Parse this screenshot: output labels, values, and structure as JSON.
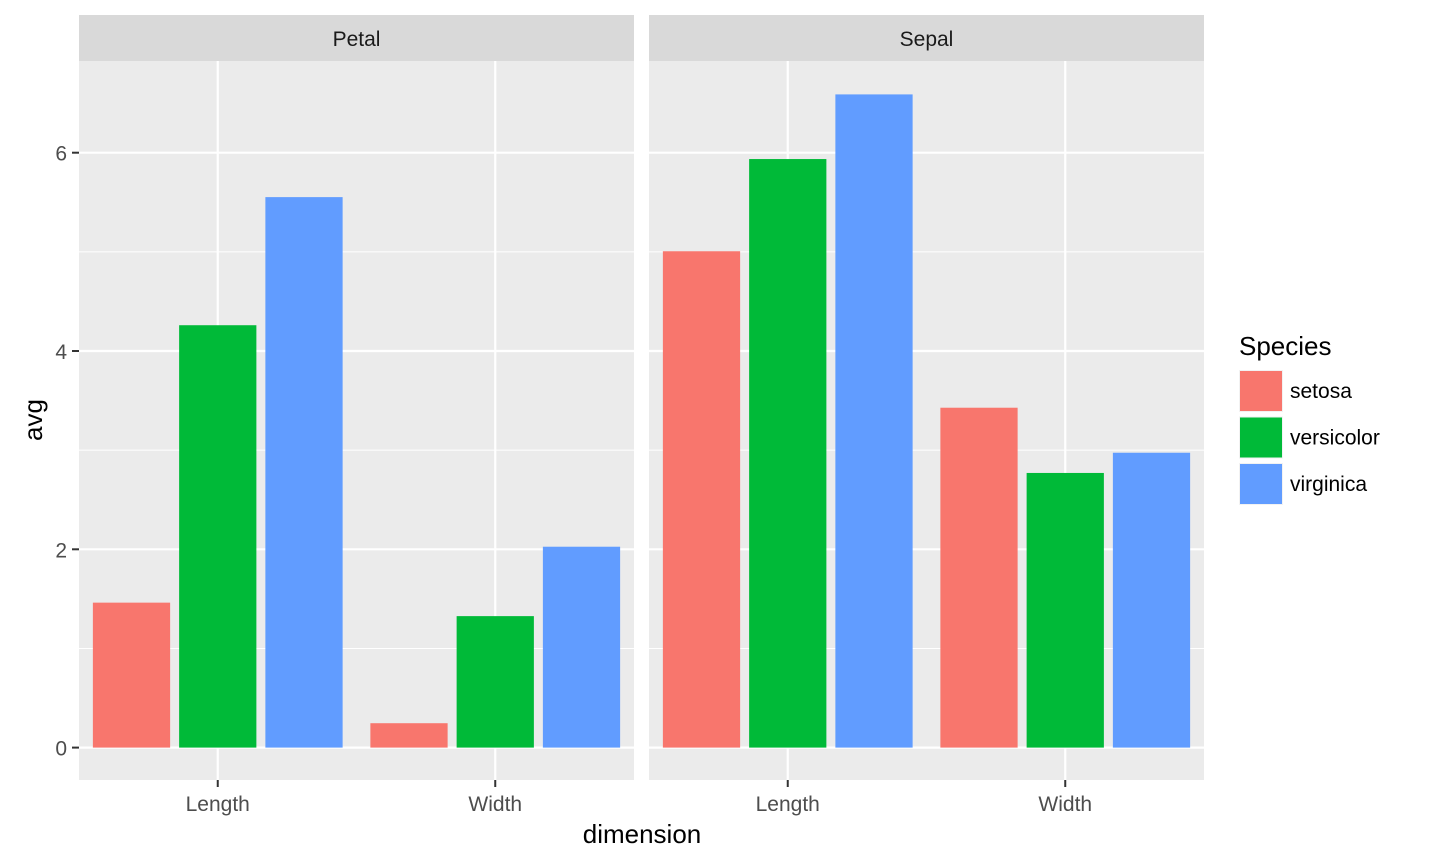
{
  "chart_data": {
    "type": "bar",
    "layout": "grouped bars, faceted into two panels side by side",
    "facets": [
      "Petal",
      "Sepal"
    ],
    "categories": [
      "Length",
      "Width"
    ],
    "series": [
      {
        "name": "setosa",
        "color": "#F8766D",
        "values": {
          "Petal": [
            1.462,
            0.246
          ],
          "Sepal": [
            5.006,
            3.428
          ]
        }
      },
      {
        "name": "versicolor",
        "color": "#00BA38",
        "values": {
          "Petal": [
            4.26,
            1.326
          ],
          "Sepal": [
            5.936,
            2.77
          ]
        }
      },
      {
        "name": "virginica",
        "color": "#619CFF",
        "values": {
          "Petal": [
            5.552,
            2.026
          ],
          "Sepal": [
            6.588,
            2.974
          ]
        }
      }
    ],
    "xlabel": "dimension",
    "ylabel": "avg",
    "ylim": [
      0,
      6.6
    ],
    "yticks": [
      0,
      2,
      4,
      6
    ],
    "grid": true,
    "legend": {
      "title": "Species",
      "position": "right"
    },
    "panel_background": "#EBEBEB",
    "strip_background": "#D9D9D9"
  }
}
